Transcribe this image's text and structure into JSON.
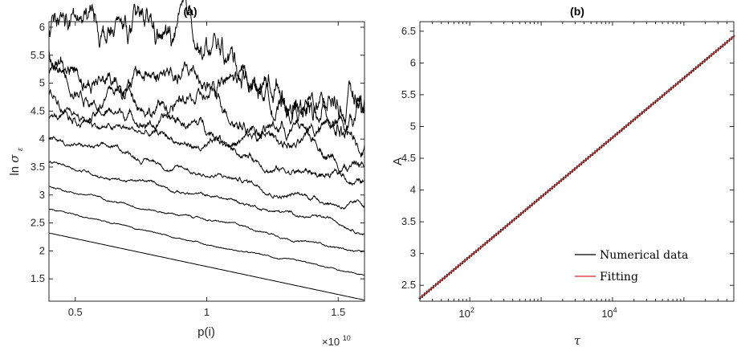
{
  "chart_data": [
    {
      "type": "line",
      "panel": "(a)",
      "title": "(a)",
      "xlabel": "p(i)",
      "ylabel": "ln σ",
      "ylabel_main": "ln",
      "ylabel_sigma": "σ",
      "ylabel_sub": "ε",
      "x_multiplier_label": "×10",
      "x_multiplier_exp": "10",
      "xlim": [
        0.4,
        1.6
      ],
      "ylim": [
        1.1,
        6.1
      ],
      "xticks": [
        0.5,
        1,
        1.5
      ],
      "xtick_labels": [
        "0.5",
        "1",
        "1.5"
      ],
      "yticks": [
        1.5,
        2,
        2.5,
        3,
        3.5,
        4,
        4.5,
        5,
        5.5,
        6
      ],
      "ytick_labels": [
        "1.5",
        "2",
        "2.5",
        "3",
        "3.5",
        "4",
        "4.5",
        "5",
        "5.5",
        "6"
      ],
      "line_color": "#000000",
      "series": [
        {
          "start": 2.32,
          "end": 1.12,
          "noise": 0.0
        },
        {
          "start": 2.74,
          "end": 1.53,
          "noise": 0.004
        },
        {
          "start": 3.16,
          "end": 1.97,
          "noise": 0.006
        },
        {
          "start": 3.58,
          "end": 2.4,
          "noise": 0.01
        },
        {
          "start": 4.0,
          "end": 2.8,
          "noise": 0.016
        },
        {
          "start": 4.4,
          "end": 3.24,
          "noise": 0.024
        },
        {
          "start": 4.8,
          "end": 3.63,
          "noise": 0.034
        },
        {
          "start": 5.18,
          "end": 4.05,
          "noise": 0.048
        },
        {
          "start": 5.56,
          "end": 4.38,
          "noise": 0.066
        },
        {
          "start": 5.95,
          "end": 4.75,
          "noise": 0.09
        }
      ]
    },
    {
      "type": "line",
      "panel": "(b)",
      "title": "(b)",
      "xlabel": "τ",
      "ylabel": "A",
      "x_scale": "log",
      "xlim": [
        20,
        500000
      ],
      "ylim": [
        2.25,
        6.65
      ],
      "xticks": [
        100,
        10000
      ],
      "xtick_labels": [
        "10",
        "10"
      ],
      "xtick_exponents": [
        "2",
        "4"
      ],
      "yticks": [
        2.5,
        3,
        3.5,
        4,
        4.5,
        5,
        5.5,
        6,
        6.5
      ],
      "ytick_labels": [
        "2.5",
        "3",
        "3.5",
        "4",
        "4.5",
        "5",
        "5.5",
        "6",
        "6.5"
      ],
      "series": [
        {
          "name": "Numerical data",
          "color": "#000000",
          "x": [
            20,
            500000
          ],
          "y": [
            2.3,
            6.42
          ]
        },
        {
          "name": "Fitting",
          "color": "#d62728",
          "x": [
            20,
            500000
          ],
          "y": [
            2.3,
            6.42
          ]
        }
      ],
      "legend_position": "bottom-right"
    }
  ]
}
